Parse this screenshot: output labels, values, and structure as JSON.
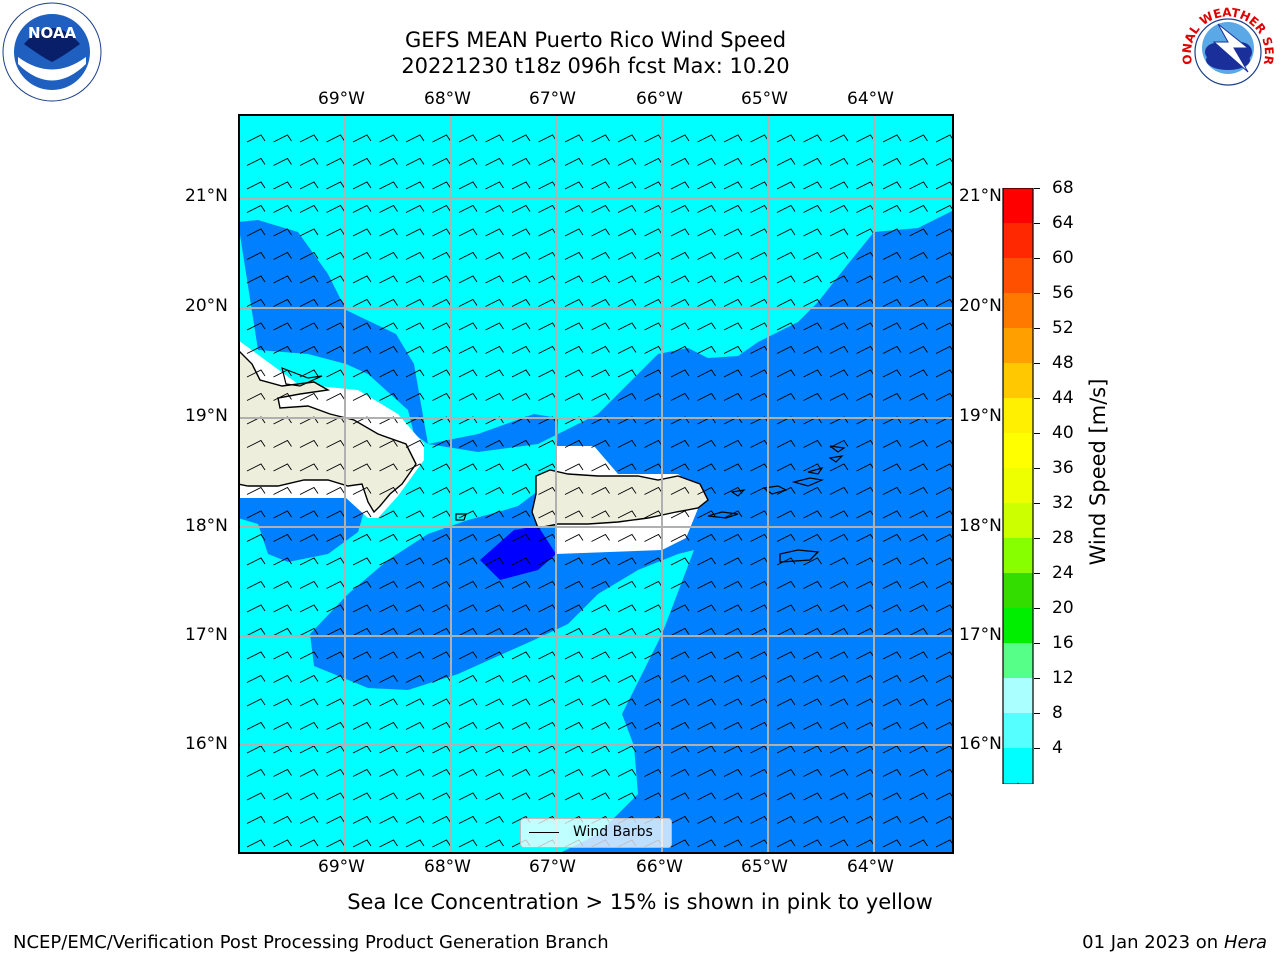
{
  "header": {
    "title_line1": "GEFS MEAN Puerto Rico Wind Speed",
    "title_line2": "20221230 t18z 096h fcst   Max: 10.20"
  },
  "map": {
    "lon_labels": [
      "69°W",
      "68°W",
      "67°W",
      "66°W",
      "65°W",
      "64°W"
    ],
    "lat_labels": [
      "21°N",
      "20°N",
      "19°N",
      "18°N",
      "17°N",
      "16°N"
    ],
    "colors": {
      "land": "#eeeedd",
      "sea_8_12": "#00ffff",
      "sea_4_8": "#0080ff",
      "sea_lt4": "#0000ff",
      "grid": "#b0b0b0"
    }
  },
  "legend": {
    "label": "Wind Barbs"
  },
  "colorbar": {
    "label": "Wind Speed [m/s]",
    "ticks": [
      "68",
      "64",
      "60",
      "56",
      "52",
      "48",
      "44",
      "40",
      "36",
      "32",
      "28",
      "24",
      "20",
      "16",
      "12",
      "8",
      "4"
    ],
    "colors": [
      "#ff0000",
      "#ff2800",
      "#ff5000",
      "#ff7800",
      "#ffa000",
      "#ffc800",
      "#ffef00",
      "#ffff00",
      "#eeff00",
      "#ccff00",
      "#88ff00",
      "#33dd00",
      "#00ee00",
      "#55ff88",
      "#aaffff",
      "#55ffff",
      "#00ffff",
      "#0080ff"
    ],
    "under_color": "#0000ff"
  },
  "note": "Sea Ice Concentration > 15% is shown in pink to yellow",
  "footer": {
    "left": "NCEP/EMC/Verification Post Processing Product Generation Branch",
    "right_date": "01 Jan 2023 on ",
    "right_machine": "Hera"
  },
  "logos": {
    "left": "NOAA",
    "right": "NATIONAL WEATHER SERVICE"
  }
}
